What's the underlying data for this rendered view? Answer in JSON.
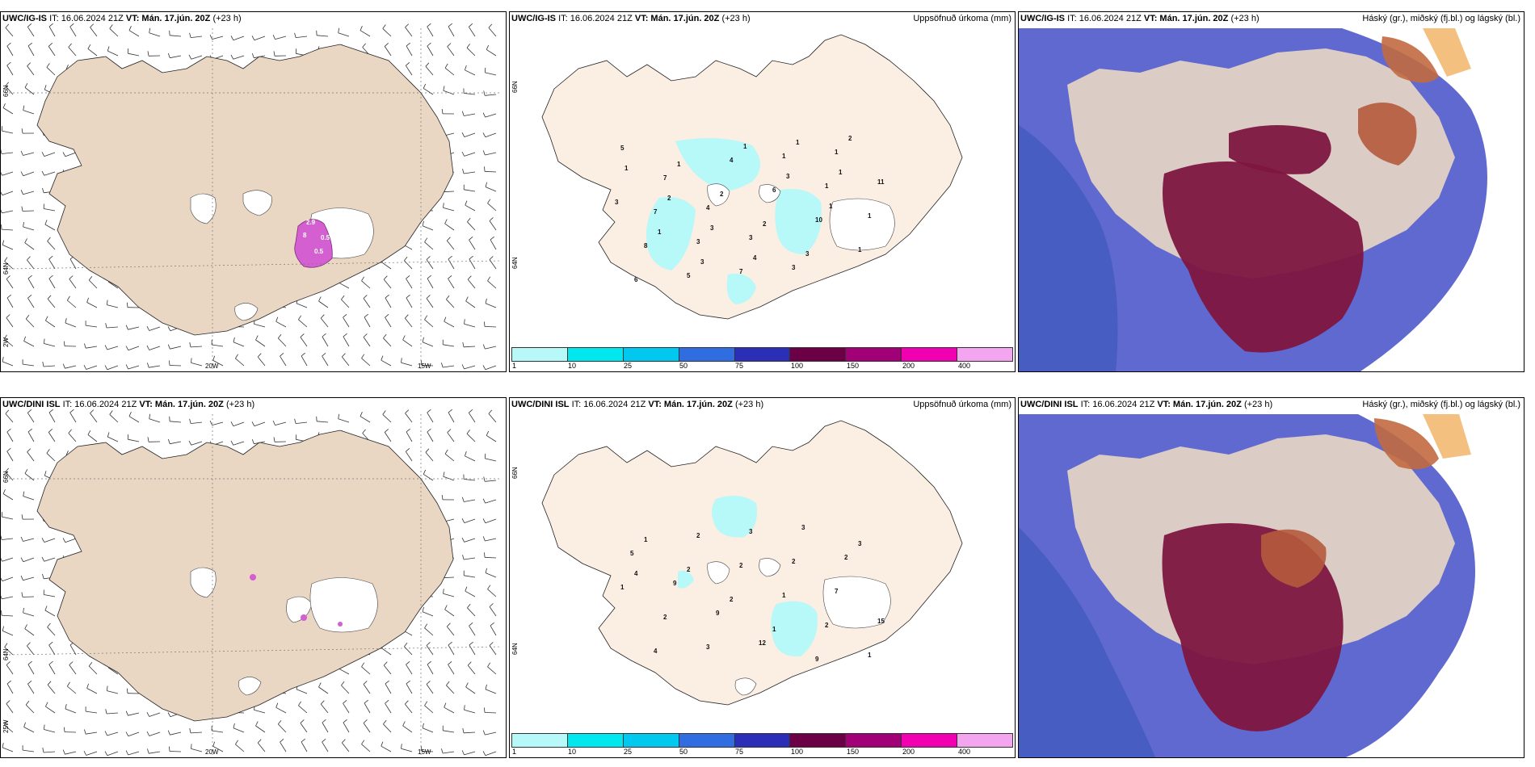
{
  "panels": {
    "ig_wind": {
      "model": "UWC/IG-IS",
      "issued": "IT: 16.06.2024 21Z",
      "valid": "VT: Mán. 17.jún. 20Z",
      "lead": "(+23 h)",
      "lat_labels": [
        "66N",
        "64N",
        "2W"
      ],
      "lon_labels": [
        "20W",
        "15W"
      ],
      "values": [
        "2.9",
        "8",
        "0.5",
        "0.5"
      ]
    },
    "ig_precip": {
      "model": "UWC/IG-IS",
      "issued": "IT: 16.06.2024 21Z",
      "valid": "VT: Mán. 17.jún. 20Z",
      "lead": "(+23 h)",
      "right_title": "Uppsöfnuð úrkoma (mm)",
      "lat_labels": [
        "66N",
        "64N"
      ],
      "values": [
        "5",
        "7",
        "4",
        "3",
        "3",
        "1",
        "11",
        "7",
        "3",
        "7",
        "1",
        "1",
        "1",
        "8",
        "5",
        "4",
        "6",
        "10",
        "1",
        "6",
        "1",
        "2",
        "2",
        "3",
        "2",
        "1",
        "2",
        "3",
        "4",
        "1",
        "1",
        "3",
        "1",
        "3",
        "1",
        "3",
        "1"
      ]
    },
    "ig_cloud": {
      "model": "UWC/IG-IS",
      "issued": "IT: 16.06.2024 21Z",
      "valid": "VT: Mán. 17.jún. 20Z",
      "lead": "(+23 h)",
      "right_title": "Háský (gr.), miðský (fj.bl.) og lágský (bl.)"
    },
    "dini_wind": {
      "model": "UWC/DINI ISL",
      "issued": "IT: 16.06.2024 21Z",
      "valid": "VT: Mán. 17.jún. 20Z",
      "lead": "(+23 h)",
      "lat_labels": [
        "66N",
        "64N",
        "25W"
      ],
      "lon_labels": [
        "20W",
        "15W"
      ]
    },
    "dini_precip": {
      "model": "UWC/DINI ISL",
      "issued": "IT: 16.06.2024 21Z",
      "valid": "VT: Mán. 17.jún. 20Z",
      "lead": "(+23 h)",
      "right_title": "Uppsöfnuð úrkoma (mm)",
      "lat_labels": [
        "66N",
        "64N"
      ],
      "values": [
        "5",
        "9",
        "9",
        "12",
        "3",
        "2",
        "1",
        "2",
        "3",
        "3",
        "2",
        "7",
        "15",
        "4",
        "2",
        "2",
        "1",
        "2",
        "1",
        "1",
        "2",
        "2",
        "1",
        "9",
        "3",
        "4"
      ]
    },
    "dini_cloud": {
      "model": "UWC/DINI ISL",
      "issued": "IT: 16.06.2024 21Z",
      "valid": "VT: Mán. 17.jún. 20Z",
      "lead": "(+23 h)",
      "right_title": "Háský (gr.), miðský (fj.bl.) og lágský (bl.)"
    }
  },
  "colorbar": {
    "labels": [
      "1",
      "10",
      "25",
      "50",
      "75",
      "100",
      "150",
      "200",
      "400"
    ],
    "colors": [
      "#b7f8f8",
      "#00e8ee",
      "#00c8ee",
      "#2f6de0",
      "#2b2fb8",
      "#6b0047",
      "#a10077",
      "#f000b0",
      "#f3a6ef"
    ]
  },
  "colors": {
    "land": "#e9d7c4",
    "land_precip": "#fbeee2",
    "ice": "#ffffff",
    "precip_light": "#b7f8f8",
    "cloud_low": "#4a54c8",
    "cloud_mid": "#7e1640",
    "cloud_high": "#e08c5e",
    "sea_green": "#1a8c77"
  }
}
